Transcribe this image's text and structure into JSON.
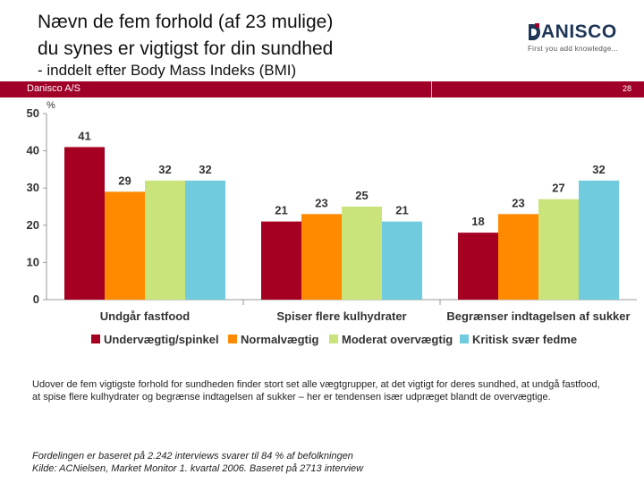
{
  "header": {
    "title_line1": "Nævn de fem forhold (af 23 mulige)",
    "title_line2": "du synes er vigtigst for din sundhed",
    "subtitle": "- inddelt efter Body Mass Indeks (BMI)"
  },
  "logo": {
    "word": "ANISCO",
    "tagline": "First you add knowledge..."
  },
  "strip": {
    "company": "Danisco A/S",
    "page": "28"
  },
  "colors": {
    "brand_red": "#a00028",
    "underweight": "#a50021",
    "normal": "#ff8a00",
    "moderate": "#c8e47a",
    "severe": "#6fcbdd"
  },
  "chart_data": {
    "type": "bar",
    "ylabel": "%",
    "ylim": [
      0,
      50
    ],
    "yticks": [
      0,
      10,
      20,
      30,
      40,
      50
    ],
    "grid": false,
    "legend_position": "bottom",
    "categories": [
      "Undgår fastfood",
      "Spiser flere kulhydrater",
      "Begrænser indtagelsen af sukker"
    ],
    "series": [
      {
        "name": "Undervægtig/spinkel",
        "color": "#a50021",
        "values": [
          41,
          21,
          18
        ]
      },
      {
        "name": "Normalvægtig",
        "color": "#ff8a00",
        "values": [
          29,
          23,
          23
        ]
      },
      {
        "name": "Moderat overvægtig",
        "color": "#c8e47a",
        "values": [
          32,
          25,
          27
        ]
      },
      {
        "name": "Kritisk svær fedme",
        "color": "#6fcbdd",
        "values": [
          32,
          21,
          32
        ]
      }
    ]
  },
  "body_text": "Udover de fem vigtigste forhold for sundheden finder stort set alle vægtgrupper, at det vigtigt for deres sundhed, at undgå fastfood, at spise flere kulhydrater og begrænse indtagelsen af sukker – her er tendensen især udpræget blandt de overvægtige.",
  "footnote": {
    "line1": "Fordelingen er baseret på 2.242 interviews svarer til 84 % af befolkningen",
    "line2": "Kilde: ACNielsen, Market Monitor 1. kvartal 2006. Baseret på 2713 interview"
  }
}
